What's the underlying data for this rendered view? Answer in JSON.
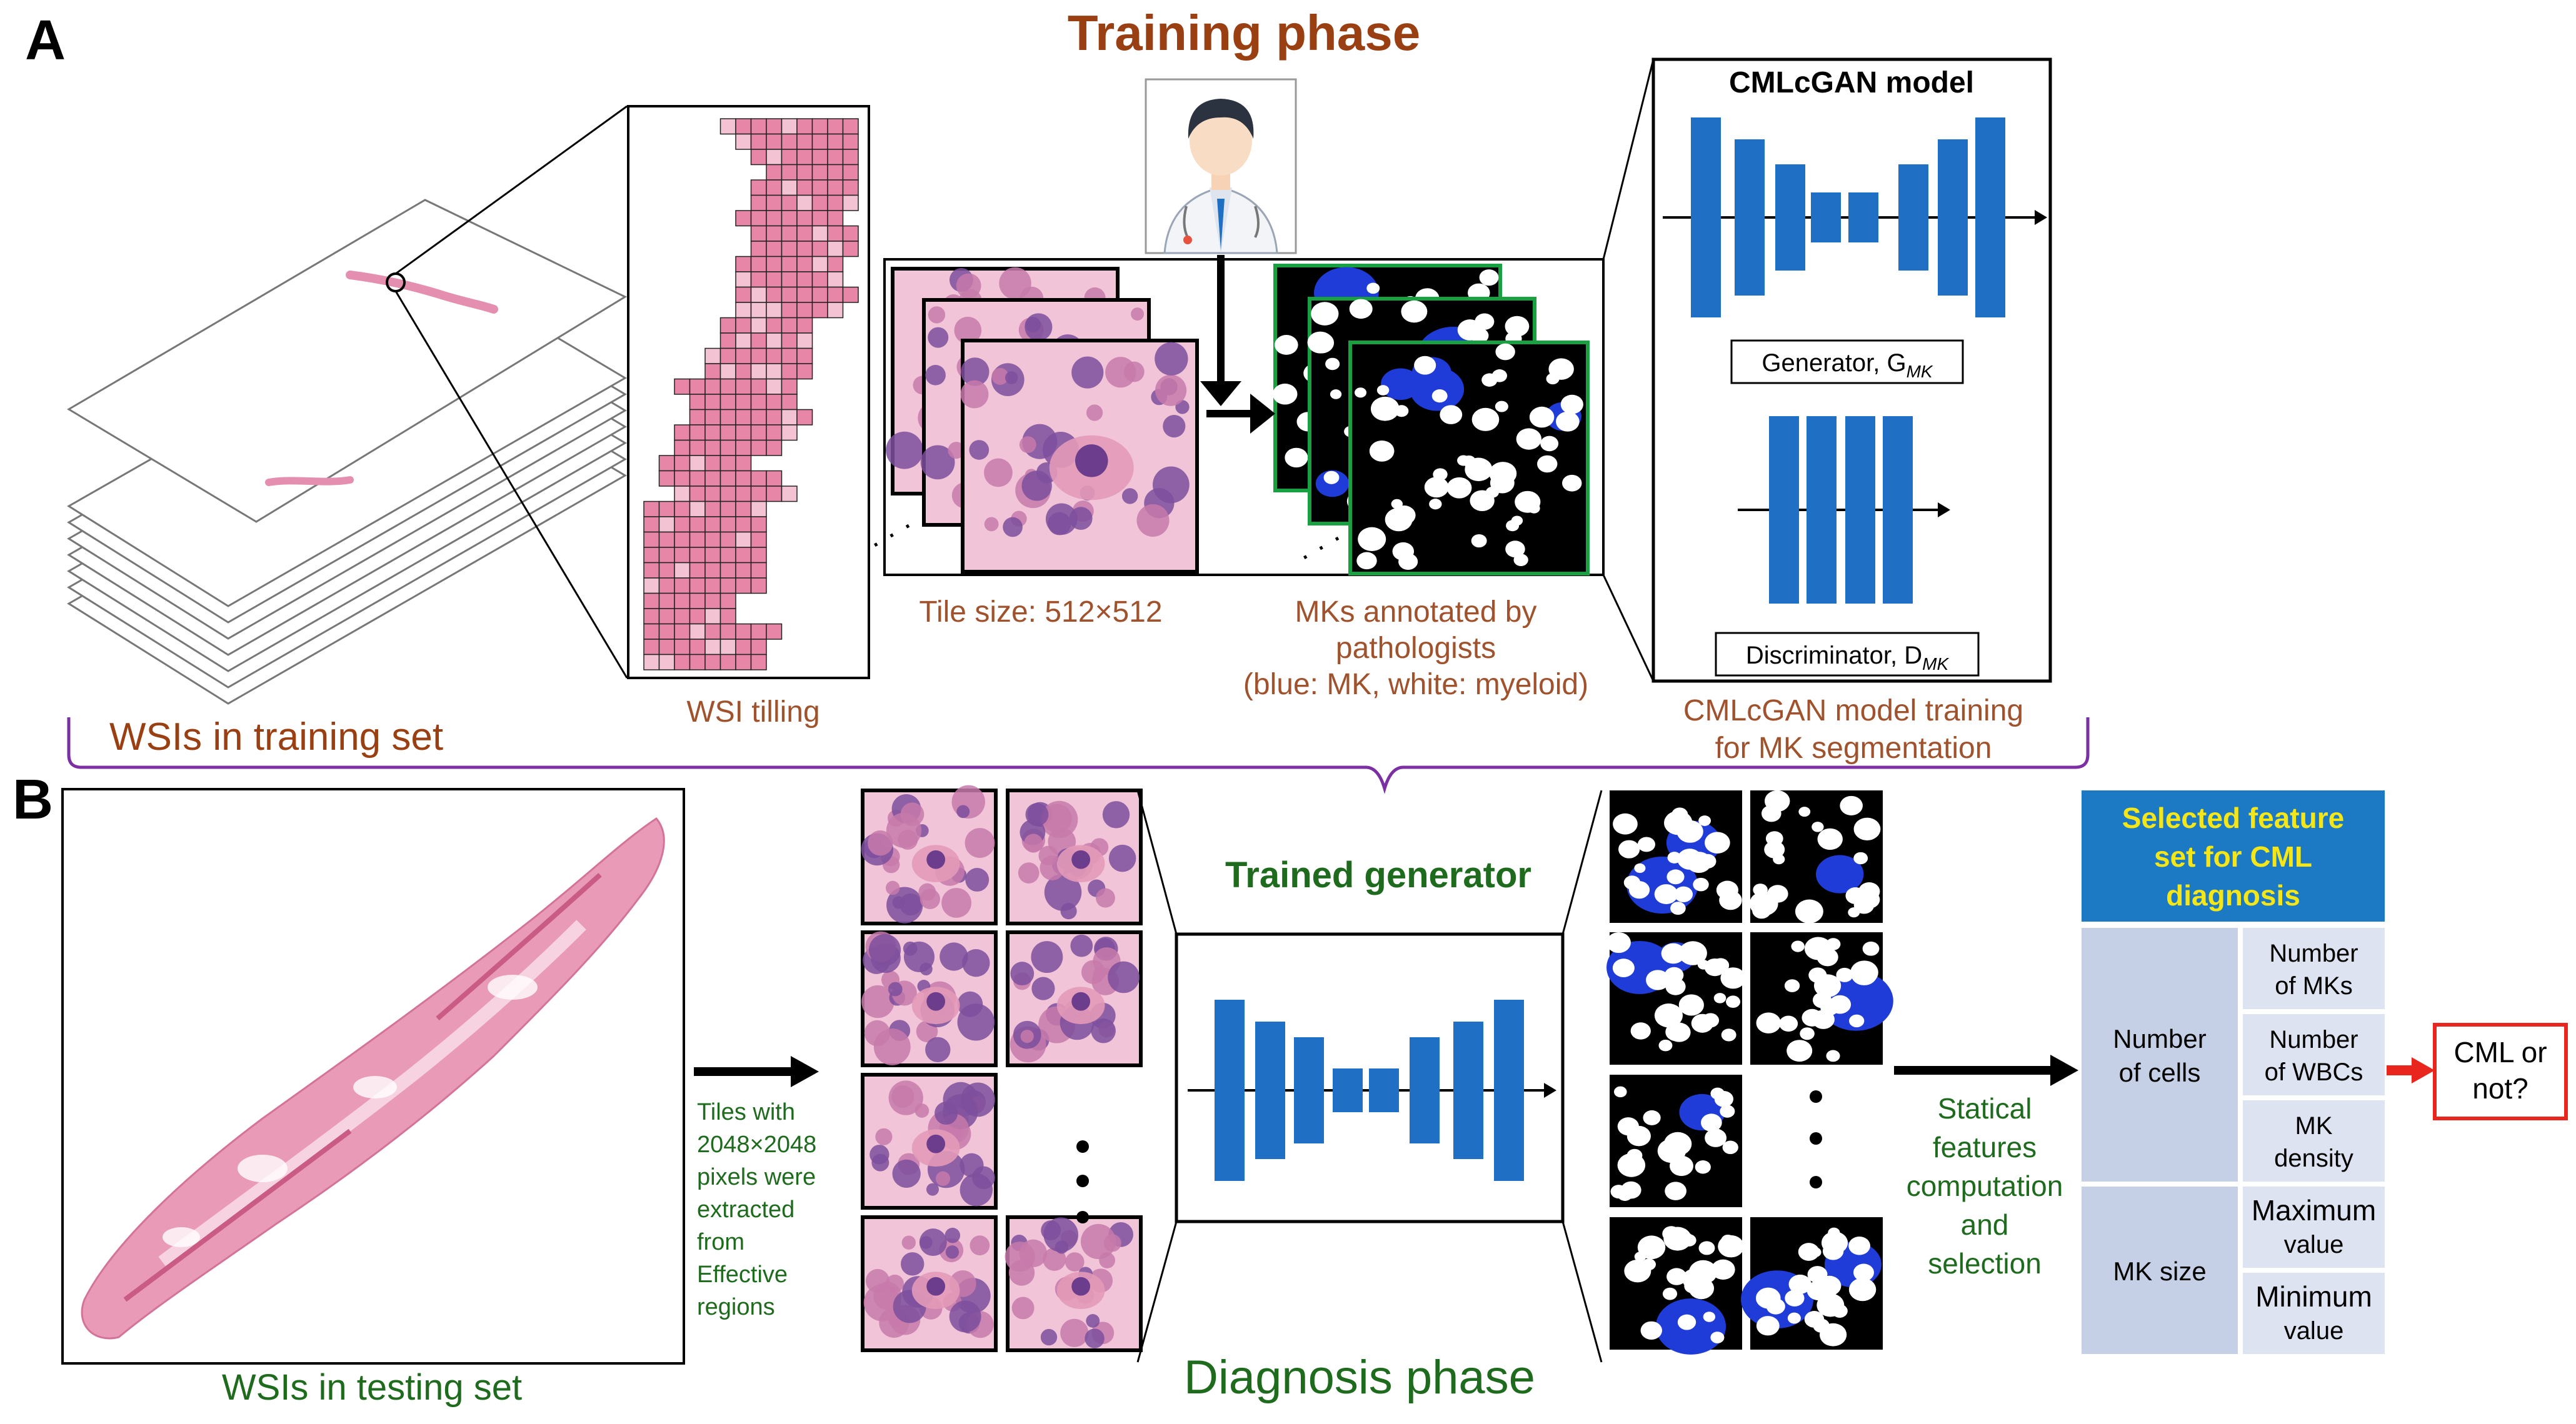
{
  "panel_a": {
    "letter": "A",
    "phase_title": "Training phase",
    "wsi_set_label": "WSIs in training set",
    "tilling_label": "WSI tilling",
    "tile_size_label": "Tile size: 512×512",
    "annotation_label": [
      "MKs annotated by",
      "pathologists",
      "(blue: MK, white: myeloid)"
    ],
    "model_title": "CMLcGAN model",
    "generator_label": {
      "main": "Generator, G",
      "sub": "MK"
    },
    "discriminator_label": {
      "main": "Discriminator, D",
      "sub": "MK"
    },
    "training_label": [
      "CMLcGAN model training",
      "for MK segmentation"
    ],
    "ellipsis": "·  ·  ·"
  },
  "panel_b": {
    "letter": "B",
    "phase_title": "Diagnosis phase",
    "wsi_set_label": "WSIs in testing set",
    "tiles_desc": [
      "Tiles with",
      "2048×2048",
      "pixels were",
      "extracted",
      "from",
      "Effective",
      "regions"
    ],
    "generator_label": "Trained generator",
    "stat_label": [
      "Statical",
      "features",
      "computation",
      "and",
      "selection"
    ],
    "feature_table": {
      "header": [
        "Selected feature",
        "set for CML",
        "diagnosis"
      ],
      "groups": [
        {
          "name": [
            "Number",
            "of cells"
          ],
          "items": [
            [
              "Number",
              "of MKs"
            ],
            [
              "Number",
              "of WBCs"
            ],
            [
              "MK",
              "density"
            ]
          ]
        },
        {
          "name": [
            "MK size"
          ],
          "items": [
            [
              "Maximum",
              "value"
            ],
            [
              "Minimum",
              "value"
            ]
          ]
        }
      ]
    },
    "output_label": [
      "CML or",
      "not?"
    ]
  },
  "colors": {
    "phase_brown": "#9a3f12",
    "label_brown": "#a0522d",
    "green_text": "#1e6b1e",
    "network_blue": "#1f6fc4",
    "mask_blue": "#1f3cd8",
    "brace_purple": "#7b2fa2",
    "tissue_pink": "#e58fb0",
    "header_blue": "#1c79c4",
    "header_text": "#f5e617",
    "cell_light": "#dde3f0",
    "cell_mid": "#c5d0e6",
    "arrow_red": "#e8261d"
  }
}
